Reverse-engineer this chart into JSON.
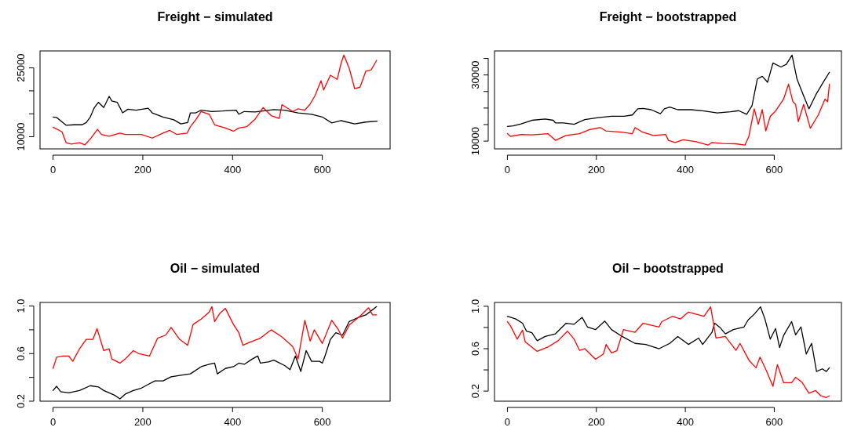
{
  "chart_data": [
    {
      "type": "line",
      "title": "Freight − simulated",
      "xlim": [
        -29,
        751
      ],
      "xticks": [
        0,
        200,
        400,
        600
      ],
      "ylim": [
        7350,
        28700
      ],
      "yticks": [
        10000,
        {
          "value": 15000,
          "label": null
        },
        {
          "value": 20000,
          "label": null
        },
        25000
      ],
      "series": [
        {
          "color": "#000000",
          "x": [
            0,
            8,
            14,
            29,
            47,
            65,
            74,
            83,
            92,
            101,
            113,
            125,
            131,
            143,
            155,
            167,
            185,
            212,
            221,
            245,
            269,
            285,
            300,
            306,
            318,
            330,
            354,
            378,
            408,
            414,
            426,
            450,
            468,
            492,
            516,
            546,
            576,
            600,
            621,
            642,
            672,
            697,
            722
          ],
          "values": [
            14300,
            14200,
            13700,
            12500,
            12600,
            12600,
            13100,
            14300,
            16350,
            17500,
            16350,
            18800,
            17800,
            17500,
            15200,
            16000,
            15800,
            16200,
            15200,
            14300,
            13700,
            12800,
            13100,
            15200,
            15200,
            15800,
            15500,
            15600,
            15800,
            14900,
            15500,
            15400,
            15600,
            15900,
            15800,
            15200,
            14900,
            14300,
            13000,
            13500,
            12800,
            13200,
            13400
          ]
        },
        {
          "color": "#ff0000",
          "x": [
            0,
            20,
            29,
            41,
            59,
            71,
            83,
            99,
            108,
            125,
            149,
            161,
            197,
            221,
            245,
            260,
            275,
            299,
            306,
            318,
            330,
            348,
            360,
            384,
            402,
            414,
            432,
            450,
            468,
            486,
            504,
            510,
            534,
            546,
            561,
            572,
            584,
            597,
            603,
            618,
            633,
            642,
            648,
            660,
            672,
            684,
            697,
            709,
            721
          ],
          "values": [
            12060,
            11060,
            8700,
            8400,
            8700,
            8240,
            9500,
            11600,
            10500,
            10100,
            10800,
            10500,
            10500,
            9700,
            10800,
            11400,
            10500,
            10800,
            12200,
            13700,
            15500,
            14900,
            12600,
            11900,
            11200,
            11900,
            12200,
            13800,
            16350,
            14600,
            14000,
            17000,
            15500,
            16100,
            15800,
            17000,
            19000,
            22200,
            20200,
            23400,
            22500,
            26050,
            27800,
            24900,
            20500,
            20800,
            24300,
            24600,
            26650
          ]
        }
      ]
    },
    {
      "type": "line",
      "title": "Freight − bootstrapped",
      "xlim": [
        -29,
        751
      ],
      "xticks": [
        0,
        200,
        400,
        600
      ],
      "ylim": [
        7660,
        37260
      ],
      "yticks": [
        10000,
        {
          "value": 15000,
          "label": null
        },
        {
          "value": 20000,
          "label": null
        },
        {
          "value": 25000,
          "label": null
        },
        30000,
        {
          "value": 35000,
          "label": null
        }
      ],
      "series": [
        {
          "color": "#000000",
          "x": [
            0,
            13,
            31,
            55,
            85,
            103,
            108,
            126,
            150,
            174,
            204,
            234,
            263,
            281,
            293,
            305,
            323,
            344,
            353,
            365,
            383,
            413,
            442,
            472,
            502,
            520,
            538,
            550,
            562,
            573,
            585,
            597,
            615,
            627,
            640,
            651,
            663,
            678,
            693,
            711,
            724
          ],
          "values": [
            14430,
            14600,
            15200,
            16300,
            16700,
            16300,
            15500,
            15500,
            15100,
            16500,
            17100,
            17500,
            17500,
            17900,
            19750,
            19900,
            19500,
            18300,
            19750,
            20300,
            19500,
            19500,
            19100,
            18500,
            18900,
            19200,
            18100,
            20700,
            28800,
            29600,
            27800,
            33600,
            32400,
            33200,
            36000,
            28800,
            24700,
            19750,
            23900,
            28000,
            30800
          ]
        },
        {
          "color": "#ff0000",
          "x": [
            0,
            7,
            31,
            55,
            91,
            108,
            132,
            162,
            185,
            209,
            221,
            257,
            281,
            287,
            304,
            328,
            356,
            362,
            377,
            395,
            425,
            451,
            460,
            484,
            513,
            534,
            543,
            555,
            564,
            573,
            581,
            591,
            603,
            621,
            632,
            642,
            648,
            654,
            666,
            681,
            699,
            714,
            720,
            724
          ],
          "values": [
            12260,
            11450,
            12000,
            11900,
            12260,
            10240,
            11700,
            12260,
            13470,
            14100,
            13100,
            12700,
            12260,
            14100,
            12700,
            11700,
            12000,
            10240,
            9600,
            10400,
            9800,
            8800,
            9600,
            9300,
            9200,
            8800,
            11450,
            19750,
            15100,
            19500,
            13100,
            17500,
            19100,
            22700,
            27200,
            21900,
            21100,
            15900,
            21100,
            13900,
            17900,
            22700,
            21900,
            27200
          ]
        }
      ]
    },
    {
      "type": "line",
      "title": "Oil − simulated",
      "xlim": [
        -29,
        751
      ],
      "xticks": [
        0,
        200,
        400,
        600
      ],
      "ylim": [
        0.2,
        1.03
      ],
      "yticks": [
        {
          "value": 0.2,
          "label": "0.2"
        },
        {
          "value": 0.4,
          "label": null
        },
        0.6,
        {
          "value": 0.8,
          "label": null
        },
        {
          "value": 1,
          "label": "1.0"
        }
      ],
      "series": [
        {
          "color": "#000000",
          "x": [
            0,
            8,
            17,
            35,
            59,
            83,
            101,
            113,
            137,
            149,
            161,
            179,
            197,
            209,
            227,
            245,
            263,
            288,
            306,
            330,
            348,
            360,
            366,
            384,
            402,
            414,
            426,
            444,
            456,
            462,
            480,
            492,
            516,
            528,
            540,
            552,
            564,
            576,
            594,
            600,
            606,
            618,
            630,
            645,
            660,
            678,
            697,
            709,
            721
          ],
          "values": [
            0.29,
            0.325,
            0.28,
            0.27,
            0.29,
            0.33,
            0.32,
            0.29,
            0.25,
            0.22,
            0.26,
            0.29,
            0.31,
            0.335,
            0.37,
            0.37,
            0.405,
            0.42,
            0.43,
            0.49,
            0.51,
            0.52,
            0.43,
            0.475,
            0.49,
            0.52,
            0.51,
            0.555,
            0.58,
            0.52,
            0.53,
            0.545,
            0.5,
            0.465,
            0.58,
            0.45,
            0.625,
            0.535,
            0.535,
            0.52,
            0.58,
            0.72,
            0.775,
            0.755,
            0.87,
            0.9,
            0.925,
            0.96,
            0.995
          ]
        },
        {
          "color": "#ff0000",
          "x": [
            0,
            8,
            23,
            35,
            44,
            59,
            74,
            89,
            98,
            113,
            125,
            131,
            149,
            161,
            179,
            191,
            215,
            233,
            251,
            263,
            282,
            300,
            312,
            330,
            348,
            354,
            360,
            372,
            384,
            402,
            414,
            423,
            438,
            462,
            486,
            510,
            534,
            546,
            561,
            573,
            582,
            600,
            621,
            636,
            645,
            660,
            684,
            703,
            712,
            721
          ],
          "values": [
            0.475,
            0.57,
            0.58,
            0.58,
            0.535,
            0.64,
            0.72,
            0.72,
            0.81,
            0.625,
            0.64,
            0.555,
            0.52,
            0.555,
            0.625,
            0.6,
            0.58,
            0.73,
            0.755,
            0.82,
            0.72,
            0.67,
            0.845,
            0.89,
            0.95,
            0.995,
            0.87,
            0.94,
            0.98,
            0.845,
            0.775,
            0.67,
            0.695,
            0.73,
            0.8,
            0.74,
            0.66,
            0.555,
            0.88,
            0.705,
            0.8,
            0.685,
            0.88,
            0.8,
            0.73,
            0.84,
            0.915,
            0.985,
            0.925,
            0.925
          ]
        }
      ]
    },
    {
      "type": "line",
      "title": "Oil − bootstrapped",
      "xlim": [
        -29,
        751
      ],
      "xticks": [
        0,
        200,
        400,
        600
      ],
      "ylim": [
        0.105,
        1.036
      ],
      "yticks": [
        0.2,
        {
          "value": 0.4,
          "label": null
        },
        0.6,
        {
          "value": 0.8,
          "label": null
        },
        {
          "value": 1,
          "label": "1.0"
        }
      ],
      "series": [
        {
          "color": "#000000",
          "x": [
            0,
            19,
            34,
            43,
            55,
            67,
            85,
            108,
            132,
            150,
            168,
            180,
            198,
            219,
            234,
            258,
            287,
            311,
            341,
            365,
            383,
            407,
            430,
            439,
            460,
            466,
            478,
            490,
            508,
            532,
            541,
            556,
            569,
            579,
            591,
            603,
            612,
            621,
            639,
            648,
            660,
            672,
            684,
            695,
            708,
            717,
            724
          ],
          "values": [
            0.905,
            0.88,
            0.84,
            0.765,
            0.75,
            0.675,
            0.715,
            0.74,
            0.84,
            0.83,
            0.895,
            0.805,
            0.78,
            0.86,
            0.78,
            0.715,
            0.65,
            0.64,
            0.6,
            0.65,
            0.715,
            0.64,
            0.7,
            0.64,
            0.755,
            0.84,
            0.8,
            0.74,
            0.78,
            0.805,
            0.87,
            0.93,
            0.995,
            0.88,
            0.69,
            0.79,
            0.61,
            0.725,
            0.855,
            0.73,
            0.805,
            0.55,
            0.65,
            0.385,
            0.41,
            0.385,
            0.42
          ]
        },
        {
          "color": "#ff0000",
          "x": [
            0,
            7,
            22,
            34,
            40,
            67,
            91,
            114,
            135,
            150,
            162,
            174,
            198,
            216,
            222,
            234,
            246,
            261,
            287,
            305,
            341,
            347,
            371,
            389,
            407,
            442,
            457,
            469,
            490,
            514,
            523,
            544,
            559,
            568,
            582,
            597,
            607,
            621,
            639,
            648,
            663,
            678,
            693,
            705,
            717,
            724
          ],
          "values": [
            0.855,
            0.815,
            0.69,
            0.775,
            0.665,
            0.575,
            0.615,
            0.675,
            0.765,
            0.69,
            0.585,
            0.6,
            0.5,
            0.55,
            0.64,
            0.56,
            0.58,
            0.78,
            0.755,
            0.84,
            0.805,
            0.855,
            0.905,
            0.88,
            0.945,
            0.905,
            0.995,
            0.7,
            0.715,
            0.585,
            0.65,
            0.485,
            0.42,
            0.52,
            0.395,
            0.245,
            0.45,
            0.28,
            0.28,
            0.33,
            0.28,
            0.18,
            0.205,
            0.155,
            0.14,
            0.155
          ]
        }
      ]
    }
  ]
}
